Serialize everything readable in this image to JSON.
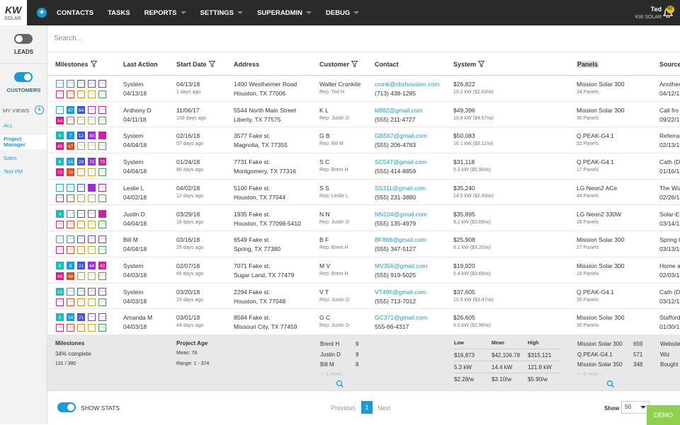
{
  "nav": {
    "logo": "KW",
    "logo_sub": "SOLAR",
    "items": [
      {
        "label": "CONTACTS",
        "dropdown": false
      },
      {
        "label": "TASKS",
        "dropdown": false
      },
      {
        "label": "REPORTS",
        "dropdown": true
      },
      {
        "label": "SETTINGS",
        "dropdown": true
      },
      {
        "label": "SUPERADMIN",
        "dropdown": true
      },
      {
        "label": "DEBUG",
        "dropdown": true
      }
    ],
    "user": "Ted",
    "company": "KW SOLAR",
    "badge": "67"
  },
  "sidebar": {
    "leads": "LEADS",
    "customers": "CUSTOMERS",
    "my_views": "MY VIEWS",
    "views": [
      {
        "label": "ALL",
        "active": false
      },
      {
        "label": "Project Manager",
        "active": true
      },
      {
        "label": "Sales",
        "active": false
      },
      {
        "label": "Test PM",
        "active": false
      }
    ]
  },
  "search": "Search...",
  "table": {
    "headers": [
      {
        "label": "Milestones",
        "filter": true
      },
      {
        "label": "Last Action",
        "filter": false
      },
      {
        "label": "Start Date",
        "filter": true
      },
      {
        "label": "Address",
        "filter": false
      },
      {
        "label": "Customer",
        "filter": true
      },
      {
        "label": "Contact",
        "filter": false
      },
      {
        "label": "System",
        "filter": true
      },
      {
        "label": "Panels",
        "filter": false,
        "highlight": true
      },
      {
        "label": "Source",
        "filter": false
      }
    ],
    "milestone_colors": [
      [
        "#19bdb1",
        "#1a9bd7",
        "#3b55d6",
        "#9a2fd8",
        "#cf1f9d"
      ],
      [
        "#e2197f",
        "#e5461c",
        "#e4901f",
        "#b5b81f",
        "#3aa94a"
      ]
    ],
    "rows": [
      {
        "milestones": [
          [
            false,
            false,
            false,
            false,
            false
          ],
          [
            false,
            false,
            false,
            false,
            false
          ]
        ],
        "cells": [
          [
            "System",
            "04/13/18"
          ],
          [
            "04/13/18",
            "1 days ago"
          ],
          [
            "1400 Westheimer Road",
            "Houston, TX 77006"
          ],
          [
            "Walter Cronkite",
            "Rep: Ted H"
          ],
          [
            "cronk@cbshouston.com",
            "(713) 438-1285"
          ],
          [
            "$26,822",
            "10.2 kW ($2.63/w)"
          ],
          [
            "Mission Solar 300",
            "34 Panels"
          ],
          [
            "Another",
            "04/12/18"
          ]
        ]
      },
      {
        "milestones": [
          [
            false,
            47,
            84,
            false,
            false
          ],
          [
            54,
            false,
            false,
            false,
            false
          ]
        ],
        "cells": [
          [
            "Anthony D",
            "04/11/18"
          ],
          [
            "11/06/17",
            "159 days ago"
          ],
          [
            "5544 North Main Street",
            "Liberty, TX 77575"
          ],
          [
            "K L",
            "Rep: Justin D"
          ],
          [
            "kl882@gmail.com",
            "(555) 211-4727"
          ],
          [
            "$49,396",
            "10.8 kW ($4.57/w)"
          ],
          [
            "Mission Solar 300",
            "36 Panels"
          ],
          [
            "Call fro",
            "09/22/17"
          ]
        ]
      },
      {
        "milestones": [
          [
            4,
            7,
            12,
            40,
            true
          ],
          [
            49,
            47,
            false,
            false,
            false
          ]
        ],
        "cells": [
          [
            "System",
            "04/04/18"
          ],
          [
            "02/16/18",
            "57 days ago"
          ],
          [
            "3577 Fake st.",
            "Magnolia, TX 77355"
          ],
          [
            "G B",
            "Rep: Bill M"
          ],
          [
            "GB567@gmail.com",
            "(555) 206-4783"
          ],
          [
            "$50,083",
            "16.1 kW ($3.11/w)"
          ],
          [
            "Q.PEAK-G4.1",
            "52 Panels"
          ],
          [
            "Referral",
            "02/13/18"
          ]
        ]
      },
      {
        "milestones": [
          [
            6,
            16,
            29,
            70,
            70
          ],
          [
            70,
            70,
            false,
            false,
            false
          ]
        ],
        "cells": [
          [
            "System",
            "04/04/18"
          ],
          [
            "01/24/18",
            "80 days ago"
          ],
          [
            "7731 Fake st.",
            "Montgomery, TX 77316"
          ],
          [
            "S C",
            "Rep: Brent H"
          ],
          [
            "SC547@gmail.com",
            "(555) 414-8859"
          ],
          [
            "$31,118",
            "5.3 kW ($5.90/w)"
          ],
          [
            "Q.PEAK-G4.1",
            "17 Panels"
          ],
          [
            "Cath (D",
            "01/16/18"
          ]
        ]
      },
      {
        "milestones": [
          [
            false,
            false,
            false,
            true,
            false
          ],
          [
            false,
            false,
            false,
            false,
            false
          ]
        ],
        "cells": [
          [
            "Leslie L",
            "04/02/18"
          ],
          [
            "04/02/18",
            "12 days ago"
          ],
          [
            "5100 Fake st.",
            "Houston, TX 77044"
          ],
          [
            "S S",
            "Rep: Leslie L"
          ],
          [
            "SS311@gmail.com",
            "(555) 231-3880"
          ],
          [
            "$35,240",
            "14.5 kW ($2.43/w)"
          ],
          [
            "LG Neon2 ACe",
            "44 Panels"
          ],
          [
            "The Wiz",
            "02/26/18"
          ]
        ]
      },
      {
        "milestones": [
          [
            4,
            false,
            false,
            false,
            true
          ],
          [
            false,
            false,
            false,
            false,
            false
          ]
        ],
        "cells": [
          [
            "Justin D",
            "04/04/18"
          ],
          [
            "03/29/18",
            "16 days ago"
          ],
          [
            "1935 Fake st.",
            "Houston, TX 77098-5410"
          ],
          [
            "N N",
            "Rep: Justin D"
          ],
          [
            "NN104@gmail.com",
            "(555) 135-4979"
          ],
          [
            "$35,895",
            "9.2 kW ($3.88/w)"
          ],
          [
            "LG Neon2 330W",
            "28 Panels"
          ],
          [
            "Solar-Es",
            "03/14/18"
          ]
        ]
      },
      {
        "milestones": [
          [
            false,
            false,
            false,
            false,
            false
          ],
          [
            false,
            false,
            false,
            false,
            false
          ]
        ],
        "cells": [
          [
            "Bill M",
            "04/04/18"
          ],
          [
            "03/16/18",
            "29 days ago"
          ],
          [
            "6549 Fake st.",
            "Spring, TX 77380"
          ],
          [
            "B F",
            "Rep: Brent H"
          ],
          [
            "BF866@gmail.com",
            "(555) 347-5127"
          ],
          [
            "$25,908",
            "8.1 kW ($3.20/w)"
          ],
          [
            "Mission Solar 300",
            "27 Panels"
          ],
          [
            "Spring I",
            "03/13/18"
          ]
        ]
      },
      {
        "milestones": [
          [
            5,
            8,
            21,
            44,
            42
          ],
          [
            49,
            49,
            false,
            false,
            false
          ]
        ],
        "cells": [
          [
            "System",
            "04/03/18"
          ],
          [
            "02/07/18",
            "66 days ago"
          ],
          [
            "7071 Fake st.",
            "Sugar Land, TX 77479"
          ],
          [
            "M V",
            "Rep: Brent H"
          ],
          [
            "MV356@gmail.com",
            "(555) 919-5025"
          ],
          [
            "$19,920",
            "5.4 kW ($3.69/w)"
          ],
          [
            "Mission Solar 300",
            "18 Panels"
          ],
          [
            "Home a",
            "02/03/18"
          ]
        ]
      },
      {
        "milestones": [
          [
            10,
            false,
            false,
            false,
            false
          ],
          [
            false,
            false,
            false,
            false,
            false
          ]
        ],
        "cells": [
          [
            "System",
            "04/03/18"
          ],
          [
            "03/20/18",
            "25 days ago"
          ],
          [
            "2294 Fake st.",
            "Houston, TX 77048"
          ],
          [
            "V T",
            "Rep: Justin D"
          ],
          [
            "VT495@gmail.com",
            "(555) 713-7012"
          ],
          [
            "$37,605",
            "10.9 kW ($3.47/w)"
          ],
          [
            "Q.PEAK-G4.1",
            "35 Panels"
          ],
          [
            "Cath (D",
            "03/12/18"
          ]
        ]
      },
      {
        "milestones": [
          [
            5,
            14,
            21,
            false,
            false
          ],
          [
            false,
            false,
            false,
            false,
            false
          ]
        ],
        "cells": [
          [
            "Amanda M",
            "04/03/18"
          ],
          [
            "03/01/18",
            "44 days ago"
          ],
          [
            "8584 Fake st.",
            "Missouri City, TX 77459"
          ],
          [
            "G C",
            "Rep: Justin D"
          ],
          [
            "GC371@gmail.com",
            "555-66-4317"
          ],
          [
            "$26,605",
            "9.0 kW ($2.96/w)"
          ],
          [
            "Mission Solar 300",
            "30 Panels"
          ],
          [
            "Stafford",
            "01/30/18"
          ]
        ]
      }
    ]
  },
  "stats": {
    "milestones": {
      "title": "Milestones",
      "line1": "34% complete",
      "line2": "131 / 380"
    },
    "age": {
      "title": "Project Age",
      "line1": "Mean: 78",
      "line2": "Range: 1 - 374"
    },
    "reps": {
      "rows": [
        [
          "Brent H",
          "9"
        ],
        [
          "Justin D",
          "9"
        ],
        [
          "Bill M",
          "8"
        ]
      ],
      "more": "+ -1 more..."
    },
    "system": {
      "header": [
        "Low",
        "Mean",
        "High"
      ],
      "rows": [
        [
          "$16,873",
          "$42,106.78",
          "$315,121"
        ],
        [
          "5.3 kW",
          "14.4 kW",
          "121.8 kW"
        ],
        [
          "$2.28/w",
          "$3.10/w",
          "$5.90/w"
        ]
      ]
    },
    "panels": {
      "rows": [
        [
          "Mission Solar 300",
          "659"
        ],
        [
          "Q.PEAK-G4.1",
          "571"
        ],
        [
          "Mission Solar 350",
          "348"
        ]
      ],
      "more": "+ -3 more..."
    },
    "source": {
      "rows": [
        "Website",
        "Wiz",
        "Bought"
      ]
    }
  },
  "footer": {
    "show_stats": "SHOW STATS",
    "previous": "Previous",
    "page": "1",
    "next": "Next",
    "show": "Show",
    "per_page": "50",
    "demo": "DEMO"
  }
}
